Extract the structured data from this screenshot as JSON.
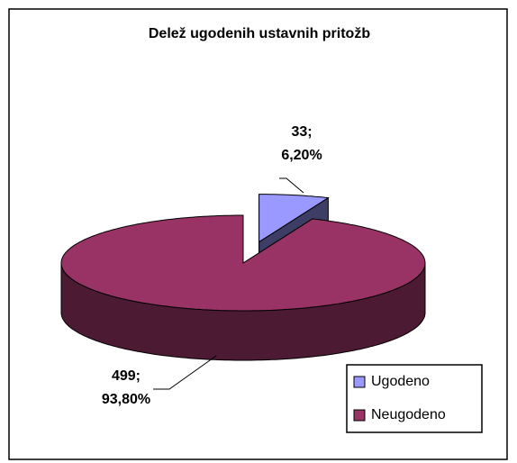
{
  "chart_data": {
    "type": "pie",
    "title": "Delež ugodenih ustavnih pritožb",
    "categories": [
      "Ugodeno",
      "Neugodeno"
    ],
    "values": [
      33,
      499
    ],
    "value_labels": [
      "33;",
      "499;"
    ],
    "percents": [
      6.2,
      93.8
    ],
    "percent_labels": [
      "6,20%",
      "93,80%"
    ],
    "colors": [
      "#9999ff",
      "#993366"
    ],
    "legend": "lower right"
  }
}
